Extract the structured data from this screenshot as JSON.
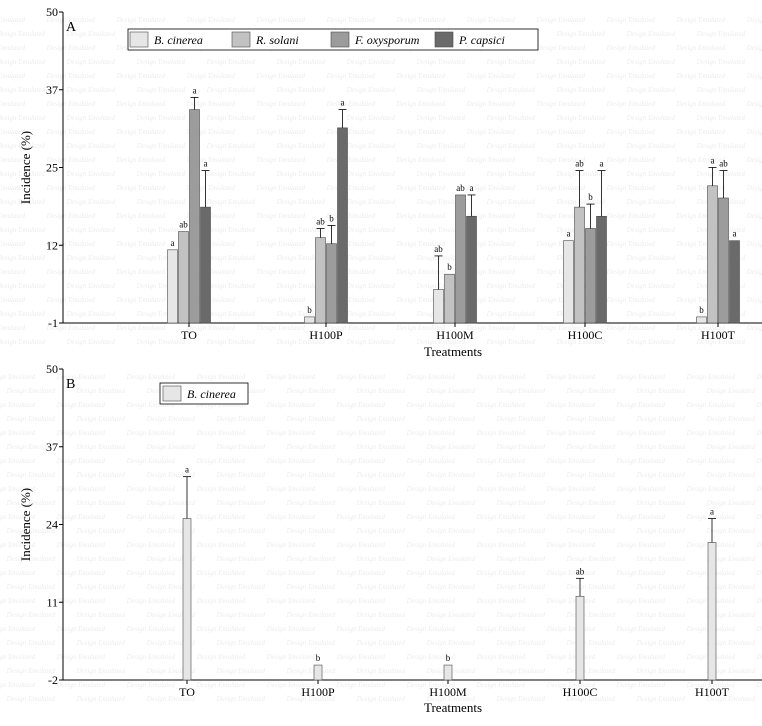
{
  "chart_data": [
    {
      "type": "bar",
      "panel_label": "A",
      "xlabel": "Treatments",
      "ylabel": "Incidence (%)",
      "ylim": [
        -1,
        50
      ],
      "yticks": [
        "-1",
        "12",
        "25",
        "37",
        "50"
      ],
      "categories": [
        "TO",
        "H100P",
        "H100M",
        "H100C",
        "H100T"
      ],
      "legend_position": "top-center",
      "series": [
        {
          "name": "B. cinerea",
          "color": "#e6e6e6",
          "values": [
            11,
            0,
            4.5,
            12.5,
            0
          ],
          "errors": [
            0,
            0,
            5.5,
            0,
            0
          ],
          "letters": [
            "a",
            "b",
            "ab",
            "a",
            "b"
          ]
        },
        {
          "name": "R. solani",
          "color": "#c2c2c2",
          "values": [
            14,
            13,
            7,
            18,
            21.5
          ],
          "errors": [
            0,
            1.5,
            0,
            6,
            3
          ],
          "letters": [
            "ab",
            "ab",
            "b",
            "ab",
            "a"
          ]
        },
        {
          "name": "F. oxysporum",
          "color": "#9c9c9c",
          "values": [
            34,
            12,
            20,
            14.5,
            19.5
          ],
          "errors": [
            2,
            3,
            0,
            4,
            4.5
          ],
          "letters": [
            "a",
            "b",
            "ab",
            "b",
            "ab"
          ]
        },
        {
          "name": "P. capsici",
          "color": "#6a6a6a",
          "values": [
            18,
            31,
            16.5,
            16.5,
            12.5
          ],
          "errors": [
            6,
            3,
            3.5,
            7.5,
            0
          ],
          "letters": [
            "a",
            "a",
            "a",
            "a",
            "a"
          ]
        }
      ]
    },
    {
      "type": "bar",
      "panel_label": "B",
      "xlabel": "Treatments",
      "ylabel": "Incidence (%)",
      "ylim": [
        -2,
        50
      ],
      "yticks": [
        "-2",
        "11",
        "24",
        "37",
        "50"
      ],
      "categories": [
        "TO",
        "H100P",
        "H100M",
        "H100C",
        "H100T"
      ],
      "legend_position": "top-left",
      "series": [
        {
          "name": "B. cinerea",
          "color": "#e6e6e6",
          "values": [
            25,
            0.5,
            0.5,
            12,
            21
          ],
          "errors": [
            7,
            0,
            0,
            3,
            4
          ],
          "letters": [
            "a",
            "b",
            "b",
            "ab",
            "a"
          ]
        }
      ]
    }
  ]
}
